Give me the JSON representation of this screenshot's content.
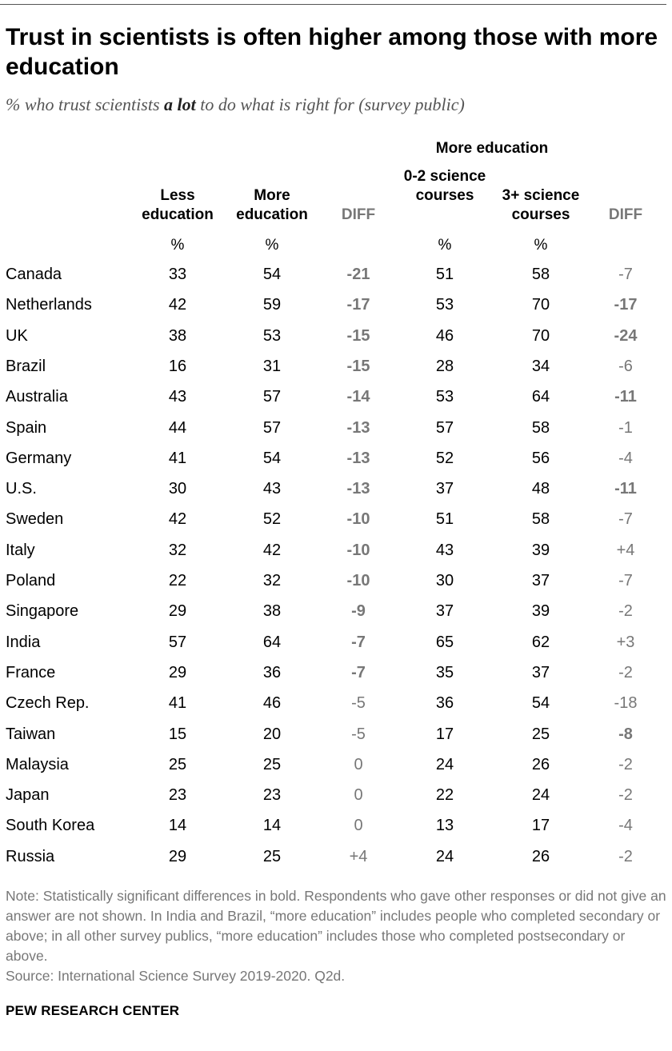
{
  "title": "Trust in scientists is often higher among those with more education",
  "subtitle_pre": "% who trust scientists ",
  "subtitle_bold": "a lot",
  "subtitle_post": " to do what is right for (survey public)",
  "chart_data": {
    "type": "table",
    "group_header": "More education",
    "columns": [
      "Less education",
      "More education",
      "DIFF",
      "0-2 science courses",
      "3+ science courses",
      "DIFF"
    ],
    "unit_label": "%",
    "rows": [
      {
        "country": "Canada",
        "less": "33",
        "more": "54",
        "diff1": "-21",
        "sig1": true,
        "c02": "51",
        "c3": "58",
        "diff2": "-7",
        "sig2": false
      },
      {
        "country": "Netherlands",
        "less": "42",
        "more": "59",
        "diff1": "-17",
        "sig1": true,
        "c02": "53",
        "c3": "70",
        "diff2": "-17",
        "sig2": true
      },
      {
        "country": "UK",
        "less": "38",
        "more": "53",
        "diff1": "-15",
        "sig1": true,
        "c02": "46",
        "c3": "70",
        "diff2": "-24",
        "sig2": true
      },
      {
        "country": "Brazil",
        "less": "16",
        "more": "31",
        "diff1": "-15",
        "sig1": true,
        "c02": "28",
        "c3": "34",
        "diff2": "-6",
        "sig2": false
      },
      {
        "country": "Australia",
        "less": "43",
        "more": "57",
        "diff1": "-14",
        "sig1": true,
        "c02": "53",
        "c3": "64",
        "diff2": "-11",
        "sig2": true
      },
      {
        "country": "Spain",
        "less": "44",
        "more": "57",
        "diff1": "-13",
        "sig1": true,
        "c02": "57",
        "c3": "58",
        "diff2": "-1",
        "sig2": false
      },
      {
        "country": "Germany",
        "less": "41",
        "more": "54",
        "diff1": "-13",
        "sig1": true,
        "c02": "52",
        "c3": "56",
        "diff2": "-4",
        "sig2": false
      },
      {
        "country": "U.S.",
        "less": "30",
        "more": "43",
        "diff1": "-13",
        "sig1": true,
        "c02": "37",
        "c3": "48",
        "diff2": "-11",
        "sig2": true
      },
      {
        "country": "Sweden",
        "less": "42",
        "more": "52",
        "diff1": "-10",
        "sig1": true,
        "c02": "51",
        "c3": "58",
        "diff2": "-7",
        "sig2": false
      },
      {
        "country": "Italy",
        "less": "32",
        "more": "42",
        "diff1": "-10",
        "sig1": true,
        "c02": "43",
        "c3": "39",
        "diff2": "+4",
        "sig2": false
      },
      {
        "country": "Poland",
        "less": "22",
        "more": "32",
        "diff1": "-10",
        "sig1": true,
        "c02": "30",
        "c3": "37",
        "diff2": "-7",
        "sig2": false
      },
      {
        "country": "Singapore",
        "less": "29",
        "more": "38",
        "diff1": "-9",
        "sig1": true,
        "c02": "37",
        "c3": "39",
        "diff2": "-2",
        "sig2": false
      },
      {
        "country": "India",
        "less": "57",
        "more": "64",
        "diff1": "-7",
        "sig1": true,
        "c02": "65",
        "c3": "62",
        "diff2": "+3",
        "sig2": false
      },
      {
        "country": "France",
        "less": "29",
        "more": "36",
        "diff1": "-7",
        "sig1": true,
        "c02": "35",
        "c3": "37",
        "diff2": "-2",
        "sig2": false
      },
      {
        "country": "Czech Rep.",
        "less": "41",
        "more": "46",
        "diff1": "-5",
        "sig1": false,
        "c02": "36",
        "c3": "54",
        "diff2": "-18",
        "sig2": false
      },
      {
        "country": "Taiwan",
        "less": "15",
        "more": "20",
        "diff1": "-5",
        "sig1": false,
        "c02": "17",
        "c3": "25",
        "diff2": "-8",
        "sig2": true
      },
      {
        "country": "Malaysia",
        "less": "25",
        "more": "25",
        "diff1": "0",
        "sig1": false,
        "c02": "24",
        "c3": "26",
        "diff2": "-2",
        "sig2": false
      },
      {
        "country": "Japan",
        "less": "23",
        "more": "23",
        "diff1": "0",
        "sig1": false,
        "c02": "22",
        "c3": "24",
        "diff2": "-2",
        "sig2": false
      },
      {
        "country": "South Korea",
        "less": "14",
        "more": "14",
        "diff1": "0",
        "sig1": false,
        "c02": "13",
        "c3": "17",
        "diff2": "-4",
        "sig2": false
      },
      {
        "country": "Russia",
        "less": "29",
        "more": "25",
        "diff1": "+4",
        "sig1": false,
        "c02": "24",
        "c3": "26",
        "diff2": "-2",
        "sig2": false
      }
    ]
  },
  "note": "Note: Statistically significant differences in bold. Respondents who gave other responses or did not give an answer are not shown. In India and Brazil, “more education” includes people who completed secondary or above; in all other survey publics, “more education” includes those who completed postsecondary or above.",
  "source": "Source: International Science Survey 2019-2020. Q2d.",
  "brand": "PEW RESEARCH CENTER",
  "colors": {
    "diff_text": "#777777",
    "note_text": "#777777"
  }
}
